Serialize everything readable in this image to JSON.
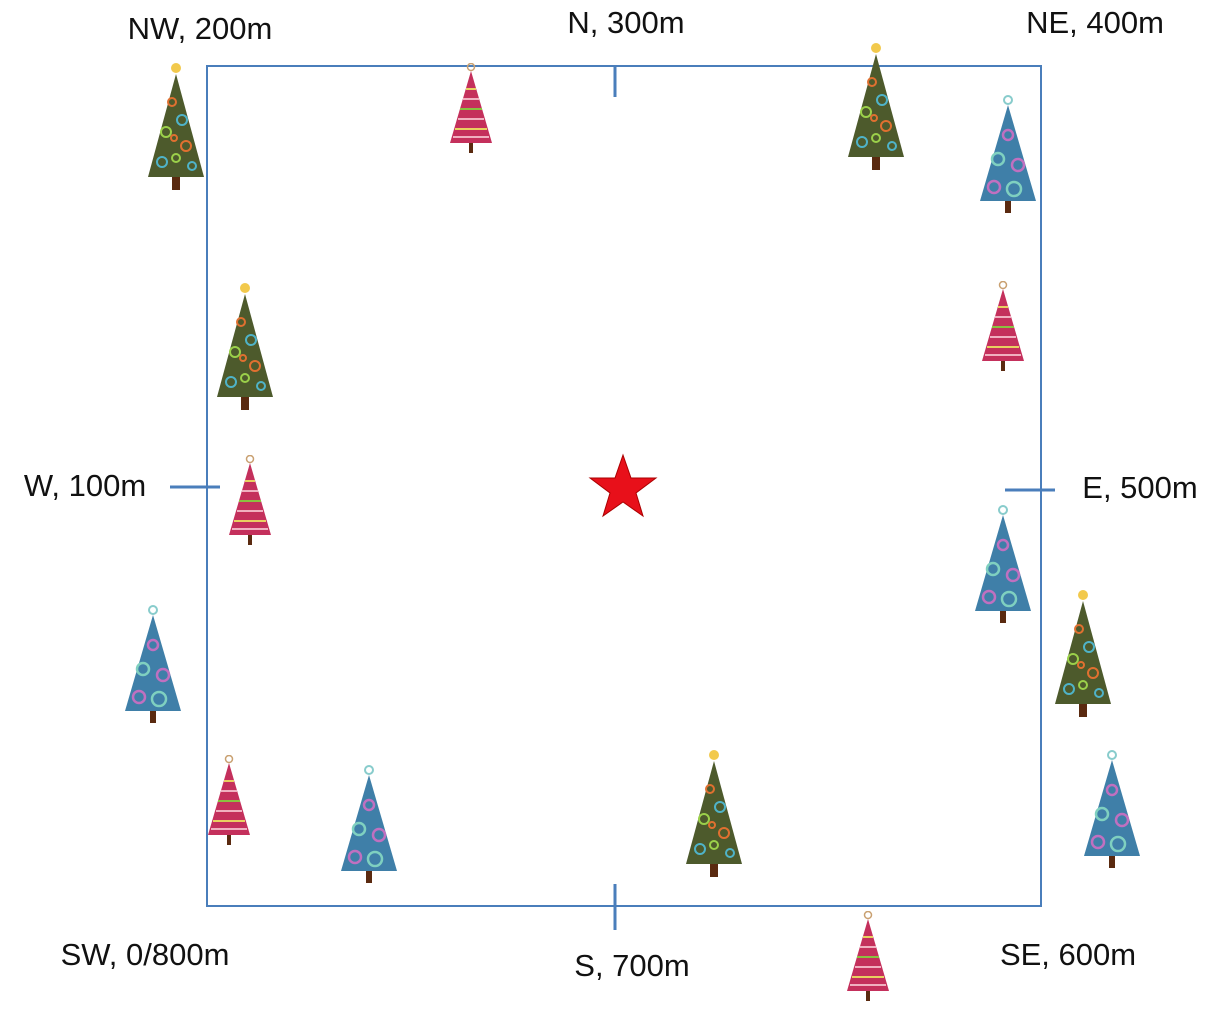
{
  "labels": [
    "NW, 200m",
    "N, 300m",
    "NE, 400m",
    "W, 100m",
    "E, 500m",
    "SW, 0/800m",
    "S, 700m",
    "SE, 600m"
  ]
}
